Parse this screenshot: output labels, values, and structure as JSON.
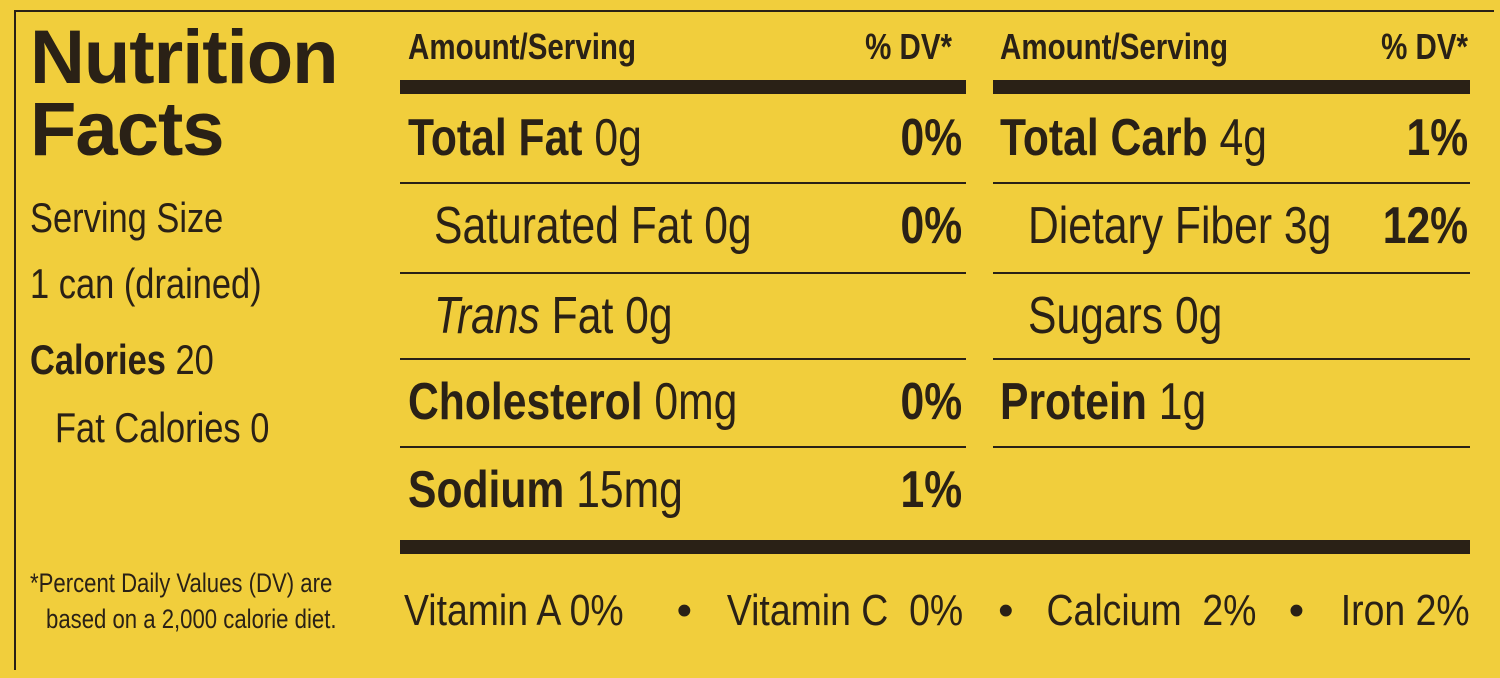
{
  "title_line1": "Nutrition",
  "title_line2": "Facts",
  "serving_label": "Serving Size",
  "serving_value": "1 can (drained)",
  "calories_label": "Calories",
  "calories_value": "20",
  "fat_calories": "Fat Calories 0",
  "footnote_line1": "*Percent Daily Values (DV) are",
  "footnote_line2": "based on a 2,000 calorie diet.",
  "header": {
    "amount": "Amount/Serving",
    "dv": "% DV*"
  },
  "left_rows": [
    {
      "name": "Total Fat",
      "amount": "0g",
      "dv": "0%"
    },
    {
      "name": "Saturated Fat",
      "amount": "0g",
      "dv": "0%"
    },
    {
      "name": "Trans",
      "amount": "Fat 0g",
      "dv": ""
    },
    {
      "name": "Cholesterol",
      "amount": "0mg",
      "dv": "0%"
    },
    {
      "name": "Sodium",
      "amount": "15mg",
      "dv": "1%"
    }
  ],
  "right_rows": [
    {
      "name": "Total Carb",
      "amount": "4g",
      "dv": "1%"
    },
    {
      "name": "Dietary Fiber",
      "amount": "3g",
      "dv": "12%"
    },
    {
      "name": "Sugars",
      "amount": "0g",
      "dv": ""
    },
    {
      "name": "Protein",
      "amount": "1g",
      "dv": ""
    }
  ],
  "vitamins": [
    "Vitamin A 0%",
    "•",
    "Vitamin C  0%",
    "•",
    "Calcium  2%",
    "•",
    "Iron 2%"
  ],
  "colors": {
    "background": "#f1ce3c",
    "ink": "#2a2116"
  }
}
